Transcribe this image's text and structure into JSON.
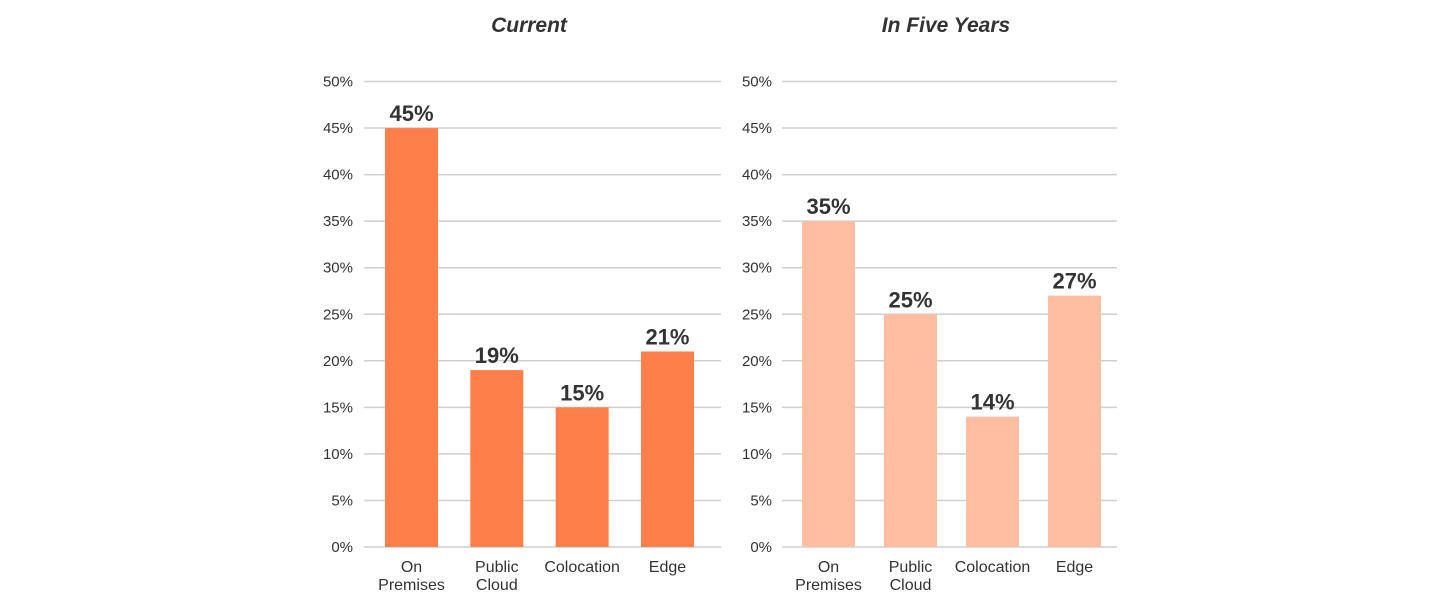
{
  "colors": {
    "current_bar": "#FF7F4B",
    "five_year_bar": "#FFBEA2",
    "grid": "#CFCFCF",
    "text": "#333333"
  },
  "chart_data": [
    {
      "type": "bar",
      "title": "Current",
      "categories": [
        [
          "On",
          "Premises"
        ],
        [
          "Public",
          "Cloud"
        ],
        [
          "Colocation"
        ],
        [
          "Edge"
        ]
      ],
      "values": [
        45,
        19,
        15,
        21
      ],
      "value_labels": [
        "45%",
        "19%",
        "15%",
        "21%"
      ],
      "ylim": [
        0,
        50
      ],
      "yticks": [
        "0%",
        "5%",
        "10%",
        "15%",
        "20%",
        "25%",
        "30%",
        "35%",
        "40%",
        "45%",
        "50%"
      ],
      "grid": true,
      "xlabel": "",
      "ylabel": ""
    },
    {
      "type": "bar",
      "title": "In Five Years",
      "categories": [
        [
          "On",
          "Premises"
        ],
        [
          "Public",
          "Cloud"
        ],
        [
          "Colocation"
        ],
        [
          "Edge"
        ]
      ],
      "values": [
        35,
        25,
        14,
        27
      ],
      "value_labels": [
        "35%",
        "25%",
        "14%",
        "27%"
      ],
      "ylim": [
        0,
        50
      ],
      "yticks": [
        "0%",
        "5%",
        "10%",
        "15%",
        "20%",
        "25%",
        "30%",
        "35%",
        "40%",
        "45%",
        "50%"
      ],
      "grid": true,
      "xlabel": "",
      "ylabel": ""
    }
  ]
}
